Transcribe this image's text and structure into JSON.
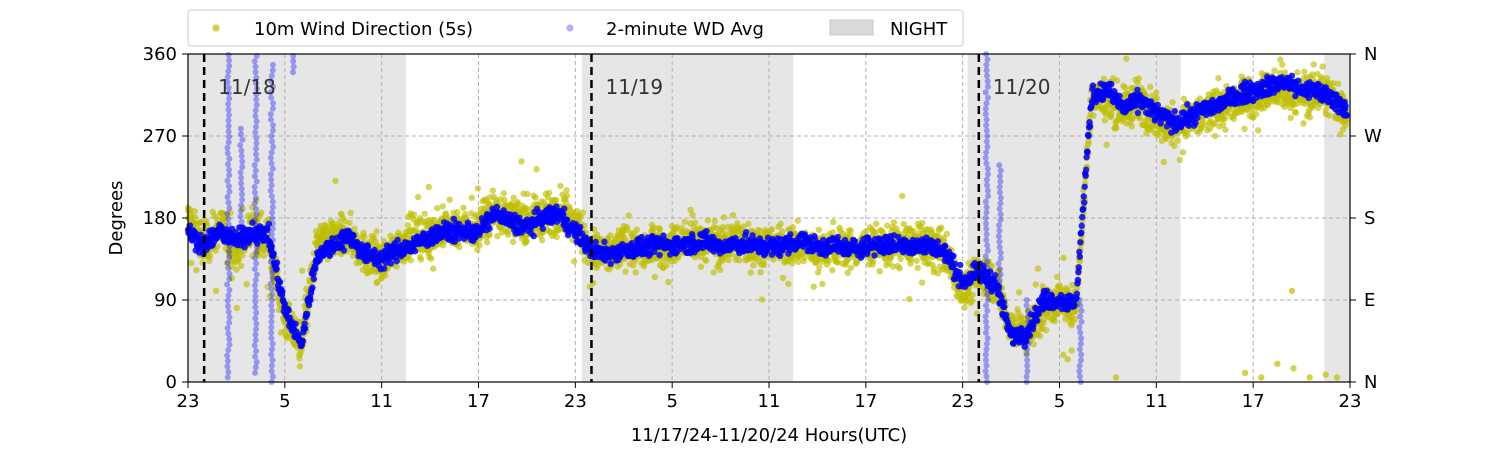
{
  "chart_data": {
    "type": "scatter",
    "title": "",
    "xlabel": "11/17/24-11/20/24  Hours(UTC)",
    "ylabel": "Degrees",
    "x_unit": "hours (UTC)",
    "xlim": [
      23,
      95
    ],
    "ylim": [
      0,
      360
    ],
    "xticks": [
      {
        "x": 23,
        "label": "23"
      },
      {
        "x": 29,
        "label": "5"
      },
      {
        "x": 35,
        "label": "11"
      },
      {
        "x": 41,
        "label": "17"
      },
      {
        "x": 47,
        "label": "23"
      },
      {
        "x": 53,
        "label": "5"
      },
      {
        "x": 59,
        "label": "11"
      },
      {
        "x": 65,
        "label": "17"
      },
      {
        "x": 71,
        "label": "23"
      },
      {
        "x": 77,
        "label": "5"
      },
      {
        "x": 83,
        "label": "11"
      },
      {
        "x": 89,
        "label": "17"
      },
      {
        "x": 95,
        "label": "23"
      }
    ],
    "yticks": [
      0,
      90,
      180,
      270,
      360
    ],
    "yticks_right": [
      {
        "y": 0,
        "label": "N"
      },
      {
        "y": 90,
        "label": "E"
      },
      {
        "y": 180,
        "label": "S"
      },
      {
        "y": 270,
        "label": "W"
      },
      {
        "y": 360,
        "label": "N"
      }
    ],
    "grid": true,
    "legend_position": "top-left, outside",
    "legend": [
      {
        "label": "10m Wind Direction (5s)",
        "kind": "dot",
        "color": "#bfbf00"
      },
      {
        "label": "2-minute WD Avg",
        "kind": "dot-faint",
        "color": "#0000ff"
      },
      {
        "label": "NIGHT",
        "kind": "patch",
        "color": "#d9d9d9"
      }
    ],
    "night_spans": [
      [
        23,
        36.5
      ],
      [
        47.4,
        60.5
      ],
      [
        71.3,
        84.5
      ],
      [
        93.4,
        95
      ]
    ],
    "day_markers": [
      {
        "x": 24,
        "label": "11/18"
      },
      {
        "x": 48,
        "label": "11/19"
      },
      {
        "x": 72,
        "label": "11/20"
      }
    ],
    "series": [
      {
        "name": "10m Wind Direction (5s)",
        "color": "#bfbf00",
        "spread_deg": 30,
        "points": [
          [
            23,
            180
          ],
          [
            24,
            150
          ],
          [
            25,
            170
          ],
          [
            26,
            140
          ],
          [
            27,
            170
          ],
          [
            28,
            150
          ],
          [
            29,
            70
          ],
          [
            30,
            40
          ],
          [
            31,
            150
          ],
          [
            32,
            160
          ],
          [
            33,
            160
          ],
          [
            34,
            140
          ],
          [
            35,
            130
          ],
          [
            36,
            150
          ],
          [
            37,
            160
          ],
          [
            38,
            160
          ],
          [
            39,
            170
          ],
          [
            40,
            170
          ],
          [
            41,
            170
          ],
          [
            42,
            190
          ],
          [
            43,
            180
          ],
          [
            44,
            180
          ],
          [
            45,
            180
          ],
          [
            46,
            190
          ],
          [
            47,
            175
          ],
          [
            48,
            140
          ],
          [
            49,
            140
          ],
          [
            50,
            150
          ],
          [
            51,
            145
          ],
          [
            52,
            150
          ],
          [
            53,
            150
          ],
          [
            54,
            155
          ],
          [
            55,
            155
          ],
          [
            56,
            150
          ],
          [
            57,
            155
          ],
          [
            58,
            150
          ],
          [
            59,
            150
          ],
          [
            60,
            150
          ],
          [
            61,
            150
          ],
          [
            62,
            145
          ],
          [
            63,
            150
          ],
          [
            64,
            145
          ],
          [
            65,
            150
          ],
          [
            66,
            150
          ],
          [
            67,
            150
          ],
          [
            68,
            150
          ],
          [
            69,
            150
          ],
          [
            70,
            140
          ],
          [
            71,
            100
          ],
          [
            72,
            120
          ],
          [
            73,
            110
          ],
          [
            74,
            60
          ],
          [
            75,
            55
          ],
          [
            76,
            80
          ],
          [
            77,
            90
          ],
          [
            78,
            80
          ],
          [
            79,
            315
          ],
          [
            80,
            310
          ],
          [
            81,
            300
          ],
          [
            82,
            310
          ],
          [
            83,
            290
          ],
          [
            84,
            280
          ],
          [
            85,
            285
          ],
          [
            86,
            295
          ],
          [
            87,
            300
          ],
          [
            88,
            310
          ],
          [
            89,
            315
          ],
          [
            90,
            320
          ],
          [
            91,
            320
          ],
          [
            92,
            315
          ],
          [
            93,
            320
          ],
          [
            94,
            310
          ],
          [
            94.8,
            295
          ]
        ],
        "outliers": [
          [
            77.5,
            25
          ],
          [
            80.5,
            5
          ],
          [
            88.5,
            10
          ],
          [
            89.5,
            5
          ],
          [
            90.5,
            20
          ],
          [
            91.5,
            15
          ],
          [
            92.5,
            5
          ],
          [
            93.5,
            8
          ],
          [
            94.2,
            5
          ],
          [
            91.4,
            100
          ]
        ]
      },
      {
        "name": "2-minute WD Avg",
        "color": "#0000ff",
        "points": [
          [
            23,
            165
          ],
          [
            24,
            150
          ],
          [
            25,
            165
          ],
          [
            26,
            155
          ],
          [
            27,
            165
          ],
          [
            28,
            160
          ],
          [
            29,
            80
          ],
          [
            30,
            40
          ],
          [
            31,
            140
          ],
          [
            32,
            150
          ],
          [
            33,
            160
          ],
          [
            34,
            140
          ],
          [
            35,
            135
          ],
          [
            36,
            145
          ],
          [
            37,
            150
          ],
          [
            38,
            160
          ],
          [
            39,
            165
          ],
          [
            40,
            165
          ],
          [
            41,
            165
          ],
          [
            42,
            185
          ],
          [
            43,
            175
          ],
          [
            44,
            170
          ],
          [
            45,
            180
          ],
          [
            46,
            185
          ],
          [
            47,
            165
          ],
          [
            48,
            145
          ],
          [
            49,
            140
          ],
          [
            50,
            145
          ],
          [
            51,
            148
          ],
          [
            52,
            150
          ],
          [
            53,
            150
          ],
          [
            54,
            152
          ],
          [
            55,
            155
          ],
          [
            56,
            148
          ],
          [
            57,
            152
          ],
          [
            58,
            150
          ],
          [
            59,
            148
          ],
          [
            60,
            150
          ],
          [
            61,
            155
          ],
          [
            62,
            148
          ],
          [
            63,
            150
          ],
          [
            64,
            145
          ],
          [
            65,
            150
          ],
          [
            66,
            150
          ],
          [
            67,
            150
          ],
          [
            68,
            150
          ],
          [
            69,
            150
          ],
          [
            70,
            140
          ],
          [
            71,
            110
          ],
          [
            72,
            120
          ],
          [
            73,
            110
          ],
          [
            74,
            50
          ],
          [
            75,
            55
          ],
          [
            76,
            90
          ],
          [
            77,
            90
          ],
          [
            78,
            85
          ],
          [
            79,
            315
          ],
          [
            80,
            320
          ],
          [
            81,
            300
          ],
          [
            82,
            310
          ],
          [
            83,
            295
          ],
          [
            84,
            285
          ],
          [
            85,
            290
          ],
          [
            86,
            300
          ],
          [
            87,
            305
          ],
          [
            88,
            315
          ],
          [
            89,
            320
          ],
          [
            90,
            325
          ],
          [
            91,
            330
          ],
          [
            92,
            320
          ],
          [
            93,
            320
          ],
          [
            94,
            310
          ],
          [
            94.8,
            300
          ]
        ],
        "transients": [
          {
            "x": 25.5,
            "from": 5,
            "to": 360
          },
          {
            "x": 26.3,
            "from": 170,
            "to": 280
          },
          {
            "x": 27.2,
            "from": 10,
            "to": 360
          },
          {
            "x": 28.2,
            "from": 0,
            "to": 350
          },
          {
            "x": 29.5,
            "from": 340,
            "to": 360
          },
          {
            "x": 72.5,
            "from": 0,
            "to": 360
          },
          {
            "x": 73.3,
            "from": 100,
            "to": 240
          },
          {
            "x": 75,
            "from": 0,
            "to": 90
          },
          {
            "x": 78.3,
            "from": 0,
            "to": 95
          }
        ]
      }
    ]
  }
}
